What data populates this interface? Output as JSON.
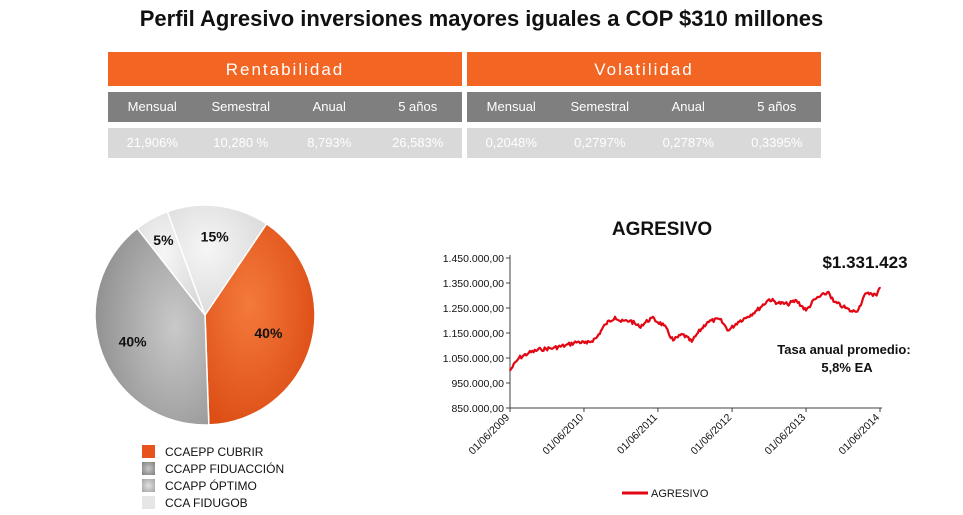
{
  "title": "Perfil Agresivo inversiones mayores iguales a COP $310 millones",
  "rentabilidad": {
    "header": "Rentabilidad",
    "columns": [
      "Mensual",
      "Semestral",
      "Anual",
      "5 años"
    ],
    "values": [
      "21,906%",
      "10,280 %",
      "8,793%",
      "26,583%"
    ]
  },
  "volatilidad": {
    "header": "Volatilidad",
    "columns": [
      "Mensual",
      "Semestral",
      "Anual",
      "5 años"
    ],
    "values": [
      "0,2048%",
      "0,2797%",
      "0,2787%",
      "0,3395%"
    ]
  },
  "colors": {
    "orange": "#f26522",
    "dark_gray": "#7f7f7f",
    "light_gray": "#d9d9d9",
    "line_red": "#e30613"
  },
  "chart_data": [
    {
      "type": "pie",
      "labels": [
        "CCAEPP CUBRIR",
        "CCAPP FIDUACCIÓN",
        "CCAPP ÓPTIMO",
        "CCA FIDUGOB"
      ],
      "values": [
        40,
        40,
        5,
        15
      ],
      "value_labels": [
        "40%",
        "40%",
        "5%",
        "15%"
      ],
      "colors": [
        "#e8531d",
        "#a6a6a6",
        "#dcdcdc",
        "#e2e2e2"
      ],
      "legend_position": "bottom-left"
    },
    {
      "type": "line",
      "title": "AGRESIVO",
      "series": [
        {
          "name": "AGRESIVO",
          "color": "#e30613",
          "points": [
            [
              "2009-06-01",
              1000000
            ],
            [
              "2009-07-15",
              1050000
            ],
            [
              "2009-09-01",
              1070000
            ],
            [
              "2009-11-01",
              1085000
            ],
            [
              "2010-01-01",
              1090000
            ],
            [
              "2010-03-01",
              1100000
            ],
            [
              "2010-05-01",
              1115000
            ],
            [
              "2010-06-15",
              1108000
            ],
            [
              "2010-08-01",
              1130000
            ],
            [
              "2010-09-15",
              1185000
            ],
            [
              "2010-11-01",
              1215000
            ],
            [
              "2010-12-01",
              1195000
            ],
            [
              "2011-01-15",
              1200000
            ],
            [
              "2011-03-01",
              1175000
            ],
            [
              "2011-05-01",
              1210000
            ],
            [
              "2011-07-01",
              1180000
            ],
            [
              "2011-08-15",
              1120000
            ],
            [
              "2011-10-01",
              1145000
            ],
            [
              "2011-11-15",
              1115000
            ],
            [
              "2011-12-15",
              1150000
            ],
            [
              "2012-02-01",
              1195000
            ],
            [
              "2012-04-01",
              1205000
            ],
            [
              "2012-05-15",
              1160000
            ],
            [
              "2012-07-01",
              1195000
            ],
            [
              "2012-08-15",
              1215000
            ],
            [
              "2012-10-01",
              1240000
            ],
            [
              "2012-12-01",
              1285000
            ],
            [
              "2013-01-15",
              1270000
            ],
            [
              "2013-03-01",
              1265000
            ],
            [
              "2013-04-15",
              1280000
            ],
            [
              "2013-06-01",
              1240000
            ],
            [
              "2013-07-15",
              1285000
            ],
            [
              "2013-09-01",
              1305000
            ],
            [
              "2013-09-20",
              1315000
            ],
            [
              "2013-10-15",
              1275000
            ],
            [
              "2013-12-01",
              1255000
            ],
            [
              "2014-01-15",
              1235000
            ],
            [
              "2014-02-15",
              1245000
            ],
            [
              "2014-03-15",
              1300000
            ],
            [
              "2014-04-15",
              1310000
            ],
            [
              "2014-05-15",
              1300000
            ],
            [
              "2014-06-01",
              1331423
            ]
          ]
        }
      ],
      "yticks": [
        "1.450.000,00",
        "1.350.000,00",
        "1.250.000,00",
        "1.150.000,00",
        "1.050.000,00",
        "950.000,00",
        "850.000,00"
      ],
      "ylim": [
        850000,
        1450000
      ],
      "xticks": [
        "01/06/2009",
        "01/06/2010",
        "01/06/2011",
        "01/06/2012",
        "01/06/2013",
        "01/06/2014"
      ],
      "grid": false,
      "legend_position": "bottom",
      "annotations": {
        "final_value": "$1.331.423",
        "rate_label": "Tasa anual promedio:",
        "rate_value": "5,8%  EA"
      }
    }
  ]
}
